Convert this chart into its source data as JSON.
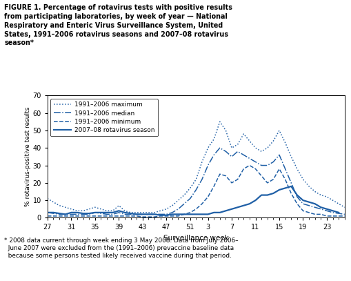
{
  "title": "FIGURE 1. Percentage of rotavirus tests with positive results\nfrom participating laboratories, by week of year — National\nRespiratory and Enteric Virus Surveillance System, United\nStates, 1991–2006 rotavirus seasons and 2007–08 rotavirus\nseason*",
  "footnote": "* 2008 data current through week ending 3 May 2008. Data from July 2006–\n  June 2007 were excluded from the (1991–2006) prevaccine baseline data\n  because some persons tested likely received vaccine during that period.",
  "xlabel": "Surveillance week",
  "ylabel": "% rotavirus-positive test results",
  "xtick_labels": [
    "27",
    "31",
    "35",
    "39",
    "43",
    "47",
    "51",
    "3",
    "7",
    "11",
    "15",
    "19",
    "23"
  ],
  "ylim": [
    0,
    70
  ],
  "yticks": [
    0,
    10,
    20,
    30,
    40,
    50,
    60,
    70
  ],
  "line_color": "#1f5fa6",
  "weeks": [
    27,
    28,
    29,
    30,
    31,
    32,
    33,
    34,
    35,
    36,
    37,
    38,
    39,
    40,
    41,
    42,
    43,
    44,
    45,
    46,
    47,
    48,
    49,
    50,
    51,
    52,
    53,
    3,
    4,
    5,
    6,
    7,
    8,
    9,
    10,
    11,
    12,
    13,
    14,
    15,
    16,
    17,
    18,
    19,
    20,
    21,
    22,
    23,
    24,
    25,
    26
  ],
  "x_positions": [
    0,
    1,
    2,
    3,
    4,
    5,
    6,
    7,
    8,
    9,
    10,
    11,
    12,
    13,
    14,
    15,
    16,
    17,
    18,
    19,
    20,
    21,
    22,
    23,
    24,
    25,
    26,
    27,
    28,
    29,
    30,
    31,
    32,
    33,
    34,
    35,
    36,
    37,
    38,
    39,
    40,
    41,
    42,
    43,
    44,
    45,
    46,
    47,
    48,
    49,
    50
  ],
  "maximum": [
    11,
    9,
    7,
    6,
    5,
    4,
    4,
    5,
    6,
    5,
    4,
    4,
    7,
    4,
    3,
    3,
    3,
    3,
    3,
    4,
    5,
    7,
    10,
    13,
    17,
    22,
    32,
    40,
    45,
    55,
    50,
    40,
    42,
    48,
    44,
    40,
    38,
    40,
    44,
    50,
    43,
    35,
    28,
    22,
    18,
    15,
    13,
    12,
    10,
    8,
    6
  ],
  "median": [
    3,
    2.5,
    2,
    2,
    2,
    2,
    2,
    2,
    3,
    2.5,
    2,
    2,
    3,
    2,
    2,
    2,
    2,
    2,
    2,
    2,
    2,
    3,
    5,
    8,
    11,
    16,
    22,
    30,
    36,
    40,
    38,
    35,
    38,
    36,
    34,
    32,
    30,
    30,
    32,
    36,
    28,
    20,
    12,
    8,
    7,
    6,
    5,
    4,
    3,
    2.5,
    2
  ],
  "minimum": [
    1,
    1,
    1,
    1,
    1,
    1,
    1,
    1,
    1,
    1,
    1,
    1,
    1,
    1,
    1,
    1,
    0.5,
    0.5,
    0.5,
    1,
    1,
    1,
    1,
    2,
    3,
    5,
    8,
    12,
    18,
    25,
    24,
    20,
    22,
    28,
    30,
    28,
    24,
    20,
    22,
    28,
    22,
    14,
    8,
    4,
    3,
    2,
    2,
    1,
    1,
    1,
    1
  ],
  "season2008": [
    3,
    3,
    2.5,
    2,
    3,
    3,
    2.5,
    2.5,
    3,
    3,
    3,
    3,
    4,
    3,
    2.5,
    2,
    2,
    2,
    2,
    1.5,
    1.5,
    2,
    2,
    2,
    2,
    2,
    2,
    2,
    3,
    3,
    4,
    5,
    6,
    7,
    8,
    10,
    13,
    13,
    14,
    16,
    17,
    18,
    13,
    10,
    9,
    8,
    6,
    5,
    4,
    3,
    null
  ]
}
